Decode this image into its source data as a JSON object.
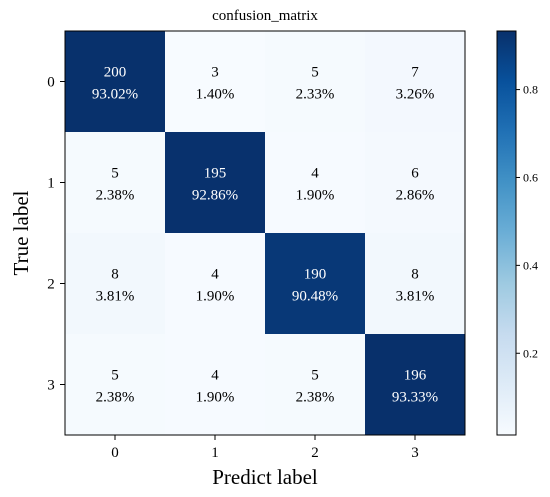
{
  "chart_data": {
    "type": "heatmap",
    "title": "confusion_matrix",
    "xlabel": "Predict label",
    "ylabel": "True label",
    "x_tick_labels": [
      "0",
      "1",
      "2",
      "3"
    ],
    "y_tick_labels": [
      "0",
      "1",
      "2",
      "3"
    ],
    "counts": [
      [
        200,
        3,
        5,
        7
      ],
      [
        5,
        195,
        4,
        6
      ],
      [
        8,
        4,
        190,
        8
      ],
      [
        5,
        4,
        5,
        196
      ]
    ],
    "percent_labels": [
      [
        "93.02%",
        "1.40%",
        "2.33%",
        "3.26%"
      ],
      [
        "2.38%",
        "92.86%",
        "1.90%",
        "2.86%"
      ],
      [
        "3.81%",
        "1.90%",
        "90.48%",
        "3.81%"
      ],
      [
        "2.38%",
        "1.90%",
        "2.38%",
        "93.33%"
      ]
    ],
    "fractions": [
      [
        0.9302,
        0.014,
        0.0233,
        0.0326
      ],
      [
        0.0238,
        0.9286,
        0.019,
        0.0286
      ],
      [
        0.0381,
        0.019,
        0.9048,
        0.0381
      ],
      [
        0.0238,
        0.019,
        0.0238,
        0.9333
      ]
    ],
    "colorbar": {
      "colormap": "Blues",
      "range": [
        0.014,
        0.9333
      ],
      "tick_values": [
        0.2,
        0.4,
        0.6,
        0.8
      ],
      "tick_labels": [
        "0.2",
        "0.4",
        "0.6",
        "0.8"
      ]
    },
    "colors": {
      "dark_text": "#000000",
      "light_text": "#ffffff"
    }
  }
}
